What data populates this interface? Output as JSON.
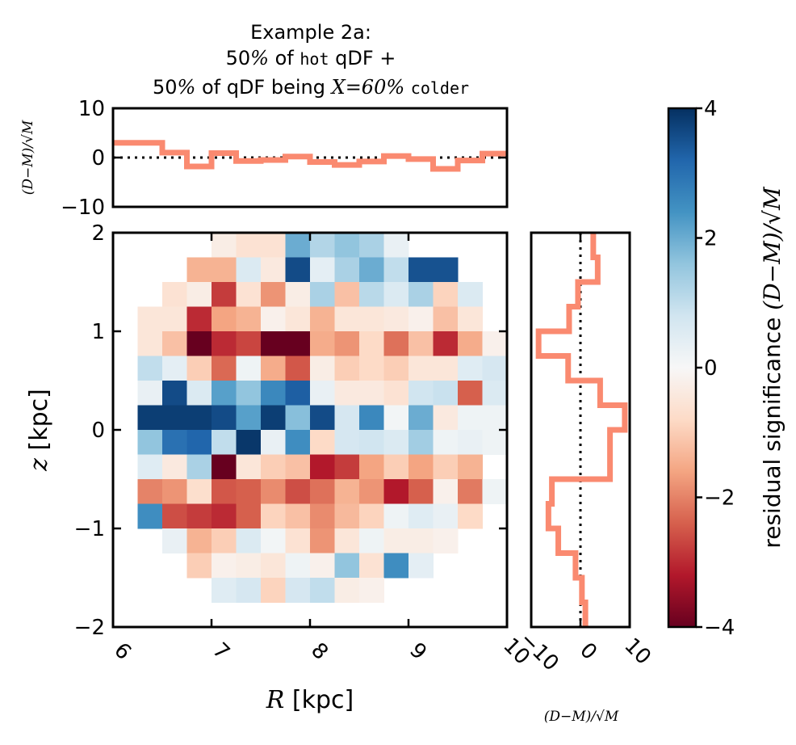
{
  "chart_data": [
    {
      "type": "heatmap",
      "panel": "main",
      "xlabel_var": "R",
      "xlabel_unit": "[kpc]",
      "ylabel_var": "z",
      "ylabel_unit": "[kpc]",
      "xlim": [
        6,
        10
      ],
      "ylim": [
        -2,
        2
      ],
      "x_ticks": [
        "6",
        "7",
        "8",
        "9",
        "10"
      ],
      "y_ticks": [
        "−2",
        "−1",
        "0",
        "1",
        "2"
      ],
      "bins": 16,
      "note": "rows ordered from top (z=2) to bottom (z=-2); null = empty bin",
      "values": [
        [
          null,
          null,
          null,
          null,
          -0.3,
          -0.6,
          -0.6,
          2.0,
          1.2,
          1.6,
          1.3,
          0.3,
          null,
          null,
          null,
          null
        ],
        [
          null,
          null,
          null,
          -1.4,
          -1.4,
          0.6,
          -0.4,
          3.6,
          0.4,
          1.3,
          2.0,
          1.0,
          3.5,
          3.5,
          null,
          null
        ],
        [
          null,
          null,
          -0.6,
          -0.3,
          -2.8,
          -0.6,
          -1.8,
          -0.3,
          1.3,
          -1.2,
          1.1,
          0.6,
          1.3,
          -0.9,
          0.6,
          null
        ],
        [
          null,
          -0.5,
          -0.5,
          -3.0,
          -1.6,
          -1.4,
          -0.2,
          -0.5,
          -1.4,
          -0.5,
          -0.5,
          -0.4,
          -0.2,
          -1.2,
          -0.5,
          null
        ],
        [
          null,
          -0.5,
          -1.2,
          -4.0,
          -3.0,
          -2.7,
          -4.0,
          -4.0,
          -1.5,
          -1.8,
          -0.8,
          -2.2,
          -1.2,
          -3.0,
          -1.5,
          -0.2
        ],
        [
          null,
          1.0,
          0.4,
          -1.0,
          -2.3,
          0.2,
          -1.5,
          -2.5,
          -0.3,
          -1.0,
          -0.8,
          -1.0,
          -0.5,
          -0.5,
          0.5,
          0.7
        ],
        [
          null,
          0.3,
          3.6,
          0.6,
          2.2,
          1.6,
          2.6,
          3.3,
          0.3,
          -0.4,
          -0.4,
          -0.6,
          0.8,
          0.9,
          -2.4,
          0.6
        ],
        [
          null,
          3.8,
          3.8,
          3.8,
          3.6,
          2.2,
          3.8,
          1.7,
          3.6,
          0.7,
          2.6,
          0.1,
          2.0,
          -0.4,
          0.2,
          0.2
        ],
        [
          null,
          1.6,
          3.0,
          3.2,
          1.0,
          3.9,
          0.3,
          2.5,
          -0.8,
          0.7,
          0.8,
          0.6,
          1.4,
          0.2,
          0.3,
          0.2
        ],
        [
          null,
          0.5,
          -0.4,
          1.3,
          -4.0,
          -0.5,
          -1.0,
          -1.2,
          -3.2,
          -2.8,
          -1.6,
          -1.0,
          -1.6,
          -1.0,
          -1.4,
          null
        ],
        [
          null,
          -2.0,
          -1.8,
          -0.7,
          -2.5,
          -2.4,
          -1.9,
          -2.6,
          -2.2,
          -1.4,
          -1.8,
          -3.2,
          -2.4,
          -0.2,
          -2.1,
          0.2
        ],
        [
          null,
          2.5,
          -2.6,
          -2.8,
          -3.0,
          -2.4,
          -0.9,
          -1.2,
          -1.9,
          -1.3,
          -0.9,
          0.2,
          0.5,
          0.3,
          -0.8,
          null
        ],
        [
          null,
          null,
          0.3,
          -1.4,
          -1.0,
          0.6,
          0.1,
          -0.6,
          -1.8,
          -0.5,
          0.2,
          -0.3,
          -0.3,
          -0.2,
          null,
          null
        ],
        [
          null,
          null,
          null,
          -1.0,
          -0.2,
          -0.3,
          -0.5,
          0.2,
          -0.2,
          1.6,
          -0.6,
          2.5,
          0.4,
          null,
          null,
          null
        ],
        [
          null,
          null,
          null,
          null,
          0.5,
          0.7,
          -0.9,
          0.7,
          1.0,
          -0.3,
          -0.2,
          null,
          null,
          null,
          null,
          null
        ],
        [
          null,
          null,
          null,
          null,
          null,
          null,
          null,
          null,
          null,
          null,
          null,
          null,
          null,
          null,
          null,
          null
        ]
      ]
    },
    {
      "type": "line",
      "panel": "top",
      "style": "step",
      "ylim": [
        -10,
        10
      ],
      "y_ticks": [
        "10",
        "0",
        "−10"
      ],
      "x": [
        6.0,
        6.25,
        6.5,
        6.75,
        7.0,
        7.25,
        7.5,
        7.75,
        8.0,
        8.25,
        8.5,
        8.75,
        9.0,
        9.25,
        9.5,
        9.75
      ],
      "values": [
        3.0,
        3.0,
        1.0,
        -1.8,
        0.9,
        -0.7,
        -0.5,
        0.2,
        -0.9,
        -1.5,
        -0.8,
        0.3,
        -0.3,
        -2.3,
        -0.6,
        0.8
      ]
    },
    {
      "type": "line",
      "panel": "right",
      "style": "step-vertical",
      "xlim": [
        -10,
        10
      ],
      "x_ticks": [
        "−10",
        "0",
        "10"
      ],
      "z": [
        1.875,
        1.625,
        1.375,
        1.125,
        0.875,
        0.625,
        0.375,
        0.125,
        -0.125,
        -0.375,
        -0.625,
        -0.875,
        -1.125,
        -1.375,
        -1.625,
        -1.875
      ],
      "values": [
        2.6,
        3.5,
        -0.5,
        -2.3,
        -8.5,
        -2.5,
        4.0,
        9.0,
        6.0,
        6.0,
        -5.8,
        -6.5,
        -4.5,
        -1.0,
        0.3,
        1.0
      ]
    },
    {
      "type": "colorbar",
      "vlim": [
        -4,
        4
      ],
      "ticks": [
        "4",
        "2",
        "0",
        "−2",
        "−4"
      ],
      "label_text": "residual significance",
      "label_math": "(D−M)/√M",
      "colormap": [
        "#67001f",
        "#b2182b",
        "#d6604d",
        "#f4a582",
        "#fddbc7",
        "#f7f7f7",
        "#d1e5f0",
        "#92c5de",
        "#4393c3",
        "#2166ac",
        "#053061"
      ]
    }
  ],
  "title": {
    "line1": "Example 2a:",
    "line2_pre": "50",
    "line2_pct": "%",
    "line2_of": " of ",
    "line2_mono": "hot",
    "line2_post": " qDF +",
    "line3_pre": "50",
    "line3_pct": "%",
    "line3_mid": " of qDF being ",
    "line3_var": "X",
    "line3_eq": "=60",
    "line3_pct2": "%",
    "line3_mono": "colder"
  },
  "residual_axis_label": "(D−M)/√M",
  "colors": {
    "residual_line": "#fa8a70",
    "frame": "#000000",
    "zero_line": "#000000"
  }
}
